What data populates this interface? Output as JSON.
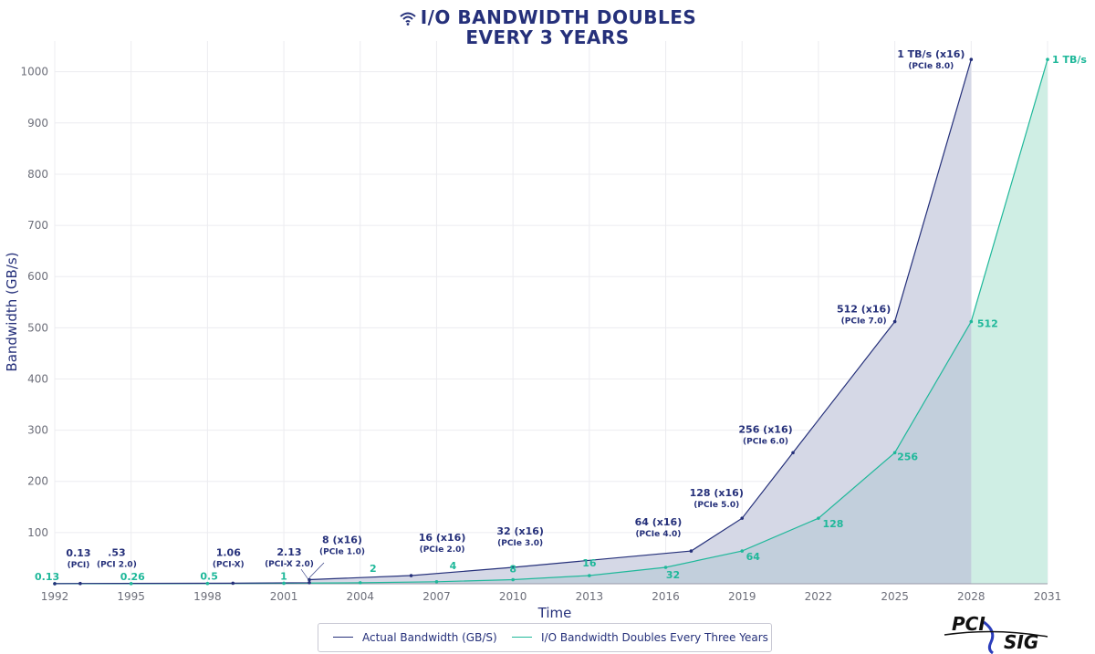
{
  "title": {
    "line1": "I/O BANDWIDTH DOUBLES",
    "line2": "EVERY 3 YEARS"
  },
  "logo": {
    "text1": "PCI",
    "text2": "SIG"
  },
  "colors": {
    "actual": "#25307a",
    "actual_fill": "#d5d8e6",
    "doubling": "#1fb89a",
    "doubling_fill": "#cfeee4",
    "overlap_fill": "#c2cfdc",
    "grid": "#ececf0",
    "axis_text": "#6d6f7a"
  },
  "chart_data": {
    "type": "area",
    "title": "I/O BANDWIDTH DOUBLES EVERY 3 YEARS",
    "xlabel": "Time",
    "ylabel": "Bandwidth (GB/s)",
    "xlim": [
      1992,
      2031
    ],
    "ylim": [
      0,
      1060
    ],
    "x_ticks": [
      1992,
      1995,
      1998,
      2001,
      2004,
      2007,
      2010,
      2013,
      2016,
      2019,
      2022,
      2025,
      2028,
      2031
    ],
    "y_ticks": [
      100,
      200,
      300,
      400,
      500,
      600,
      700,
      800,
      900,
      1000
    ],
    "grid": true,
    "legend_position": "bottom-center",
    "series": [
      {
        "name": "Actual Bandwidth (GB/S)",
        "points": [
          {
            "x": 1992,
            "y": 0.13,
            "label": "0.13",
            "sublabel": "(PCI)"
          },
          {
            "x": 1993,
            "y": 0.53,
            "label": ".53",
            "sublabel": "(PCI 2.0)"
          },
          {
            "x": 1999,
            "y": 1.06,
            "label": "1.06",
            "sublabel": "(PCI-X)"
          },
          {
            "x": 2002,
            "y": 2.13,
            "label": "2.13",
            "sublabel": "(PCI-X 2.0)"
          },
          {
            "x": 2002,
            "y": 8,
            "label": "8 (x16)",
            "sublabel": "(PCIe 1.0)"
          },
          {
            "x": 2006,
            "y": 16,
            "label": "16 (x16)",
            "sublabel": "(PCIe 2.0)"
          },
          {
            "x": 2010,
            "y": 32,
            "label": "32 (x16)",
            "sublabel": "(PCIe 3.0)"
          },
          {
            "x": 2017,
            "y": 64,
            "label": "64 (x16)",
            "sublabel": "(PCIe 4.0)"
          },
          {
            "x": 2019,
            "y": 128,
            "label": "128 (x16)",
            "sublabel": "(PCIe 5.0)"
          },
          {
            "x": 2021,
            "y": 256,
            "label": "256 (x16)",
            "sublabel": "(PCIe 6.0)"
          },
          {
            "x": 2025,
            "y": 512,
            "label": "512 (x16)",
            "sublabel": "(PCIe 7.0)"
          },
          {
            "x": 2028,
            "y": 1024,
            "label": "1 TB/s (x16)",
            "sublabel": "(PCIe 8.0)"
          }
        ]
      },
      {
        "name": "I/O Bandwidth Doubles Every Three Years",
        "points": [
          {
            "x": 1992,
            "y": 0.13,
            "label": "0.13"
          },
          {
            "x": 1995,
            "y": 0.26,
            "label": "0.26"
          },
          {
            "x": 1998,
            "y": 0.5,
            "label": "0.5"
          },
          {
            "x": 2001,
            "y": 1,
            "label": "1"
          },
          {
            "x": 2004,
            "y": 2,
            "label": "2"
          },
          {
            "x": 2007,
            "y": 4,
            "label": "4"
          },
          {
            "x": 2010,
            "y": 8,
            "label": "8"
          },
          {
            "x": 2013,
            "y": 16,
            "label": "16"
          },
          {
            "x": 2016,
            "y": 32,
            "label": "32"
          },
          {
            "x": 2019,
            "y": 64,
            "label": "64"
          },
          {
            "x": 2022,
            "y": 128,
            "label": "128"
          },
          {
            "x": 2025,
            "y": 256,
            "label": "256"
          },
          {
            "x": 2028,
            "y": 512,
            "label": "512"
          },
          {
            "x": 2031,
            "y": 1024,
            "label": "1 TB/s"
          }
        ]
      }
    ]
  }
}
